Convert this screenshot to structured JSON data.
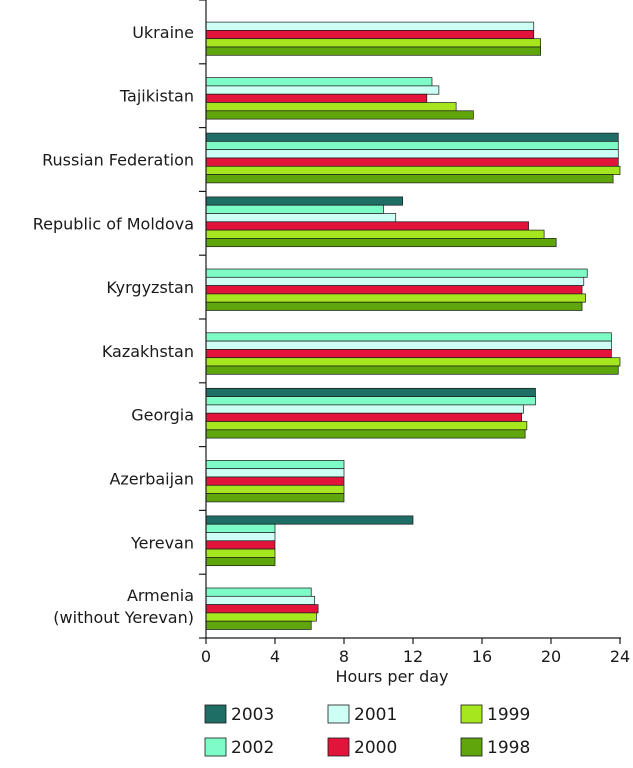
{
  "chart_data": {
    "type": "bar",
    "orientation": "horizontal",
    "xlabel": "Hours per day",
    "xlim": [
      0,
      24
    ],
    "xticks": [
      "0",
      "4",
      "8",
      "12",
      "16",
      "20",
      "24"
    ],
    "grid": false,
    "legend_position": "bottom",
    "categories": [
      "Ukraine",
      "Tajikistan",
      "Russian Federation",
      "Republic of Moldova",
      "Kyrgyzstan",
      "Kazakhstan",
      "Georgia",
      "Azerbaijan",
      "Yerevan",
      "Armenia\n(without Yerevan)"
    ],
    "series": [
      {
        "name": "2003",
        "color": "#1f6e66",
        "values": [
          null,
          null,
          23.9,
          11.4,
          null,
          null,
          19.1,
          null,
          12.0,
          null
        ]
      },
      {
        "name": "2002",
        "color": "#7dfcc8",
        "values": [
          null,
          13.1,
          23.9,
          10.3,
          22.1,
          23.5,
          19.1,
          8.0,
          4.0,
          6.1
        ]
      },
      {
        "name": "2001",
        "color": "#cdfff5",
        "values": [
          19.0,
          13.5,
          23.9,
          11.0,
          21.9,
          23.5,
          18.4,
          8.0,
          4.0,
          6.3
        ]
      },
      {
        "name": "2000",
        "color": "#e3143c",
        "values": [
          19.0,
          12.8,
          23.9,
          18.7,
          21.8,
          23.5,
          18.3,
          8.0,
          4.0,
          6.5
        ]
      },
      {
        "name": "1999",
        "color": "#a6e61e",
        "values": [
          19.4,
          14.5,
          24.0,
          19.6,
          22.0,
          24.0,
          18.6,
          8.0,
          4.0,
          6.4
        ]
      },
      {
        "name": "1998",
        "color": "#5ea60c",
        "values": [
          19.4,
          15.5,
          23.6,
          20.3,
          21.8,
          23.9,
          18.5,
          8.0,
          4.0,
          6.1
        ]
      }
    ]
  }
}
